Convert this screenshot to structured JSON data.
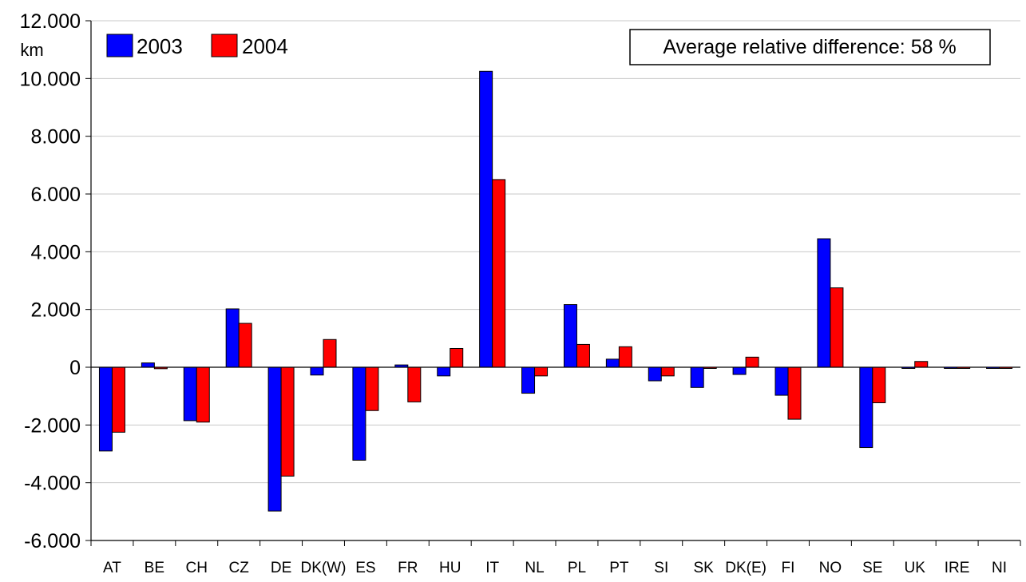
{
  "chart_data": {
    "type": "bar",
    "ylabel": "km",
    "ylim": [
      -6000,
      12000
    ],
    "ytick_values": [
      -6000,
      -4000,
      -2000,
      0,
      2000,
      4000,
      6000,
      8000,
      10000,
      12000
    ],
    "ytick_labels": [
      "-6.000",
      "-4.000",
      "-2.000",
      "0",
      "2.000",
      "4.000",
      "6.000",
      "8.000",
      "10.000",
      "12.000"
    ],
    "categories": [
      "AT",
      "BE",
      "CH",
      "CZ",
      "DE",
      "DK(W)",
      "ES",
      "FR",
      "HU",
      "IT",
      "NL",
      "PL",
      "PT",
      "SI",
      "SK",
      "DK(E)",
      "FI",
      "NO",
      "SE",
      "UK",
      "IRE",
      "NI"
    ],
    "series": [
      {
        "name": "2003",
        "color": "#0000ff",
        "values": [
          -2900,
          150,
          -1850,
          2020,
          -4980,
          -270,
          -3220,
          80,
          -300,
          10250,
          -900,
          2170,
          280,
          -470,
          -700,
          -250,
          -970,
          4450,
          -2780,
          0,
          0,
          0
        ]
      },
      {
        "name": "2004",
        "color": "#ff0000",
        "values": [
          -2250,
          -50,
          -1900,
          1520,
          -3770,
          960,
          -1500,
          -1200,
          650,
          6500,
          -300,
          790,
          710,
          -300,
          -20,
          350,
          -1800,
          2750,
          -1230,
          200,
          -30,
          -30
        ]
      }
    ],
    "grid": true,
    "legend": "top-left",
    "annotation": "Average relative difference: 58 %"
  }
}
